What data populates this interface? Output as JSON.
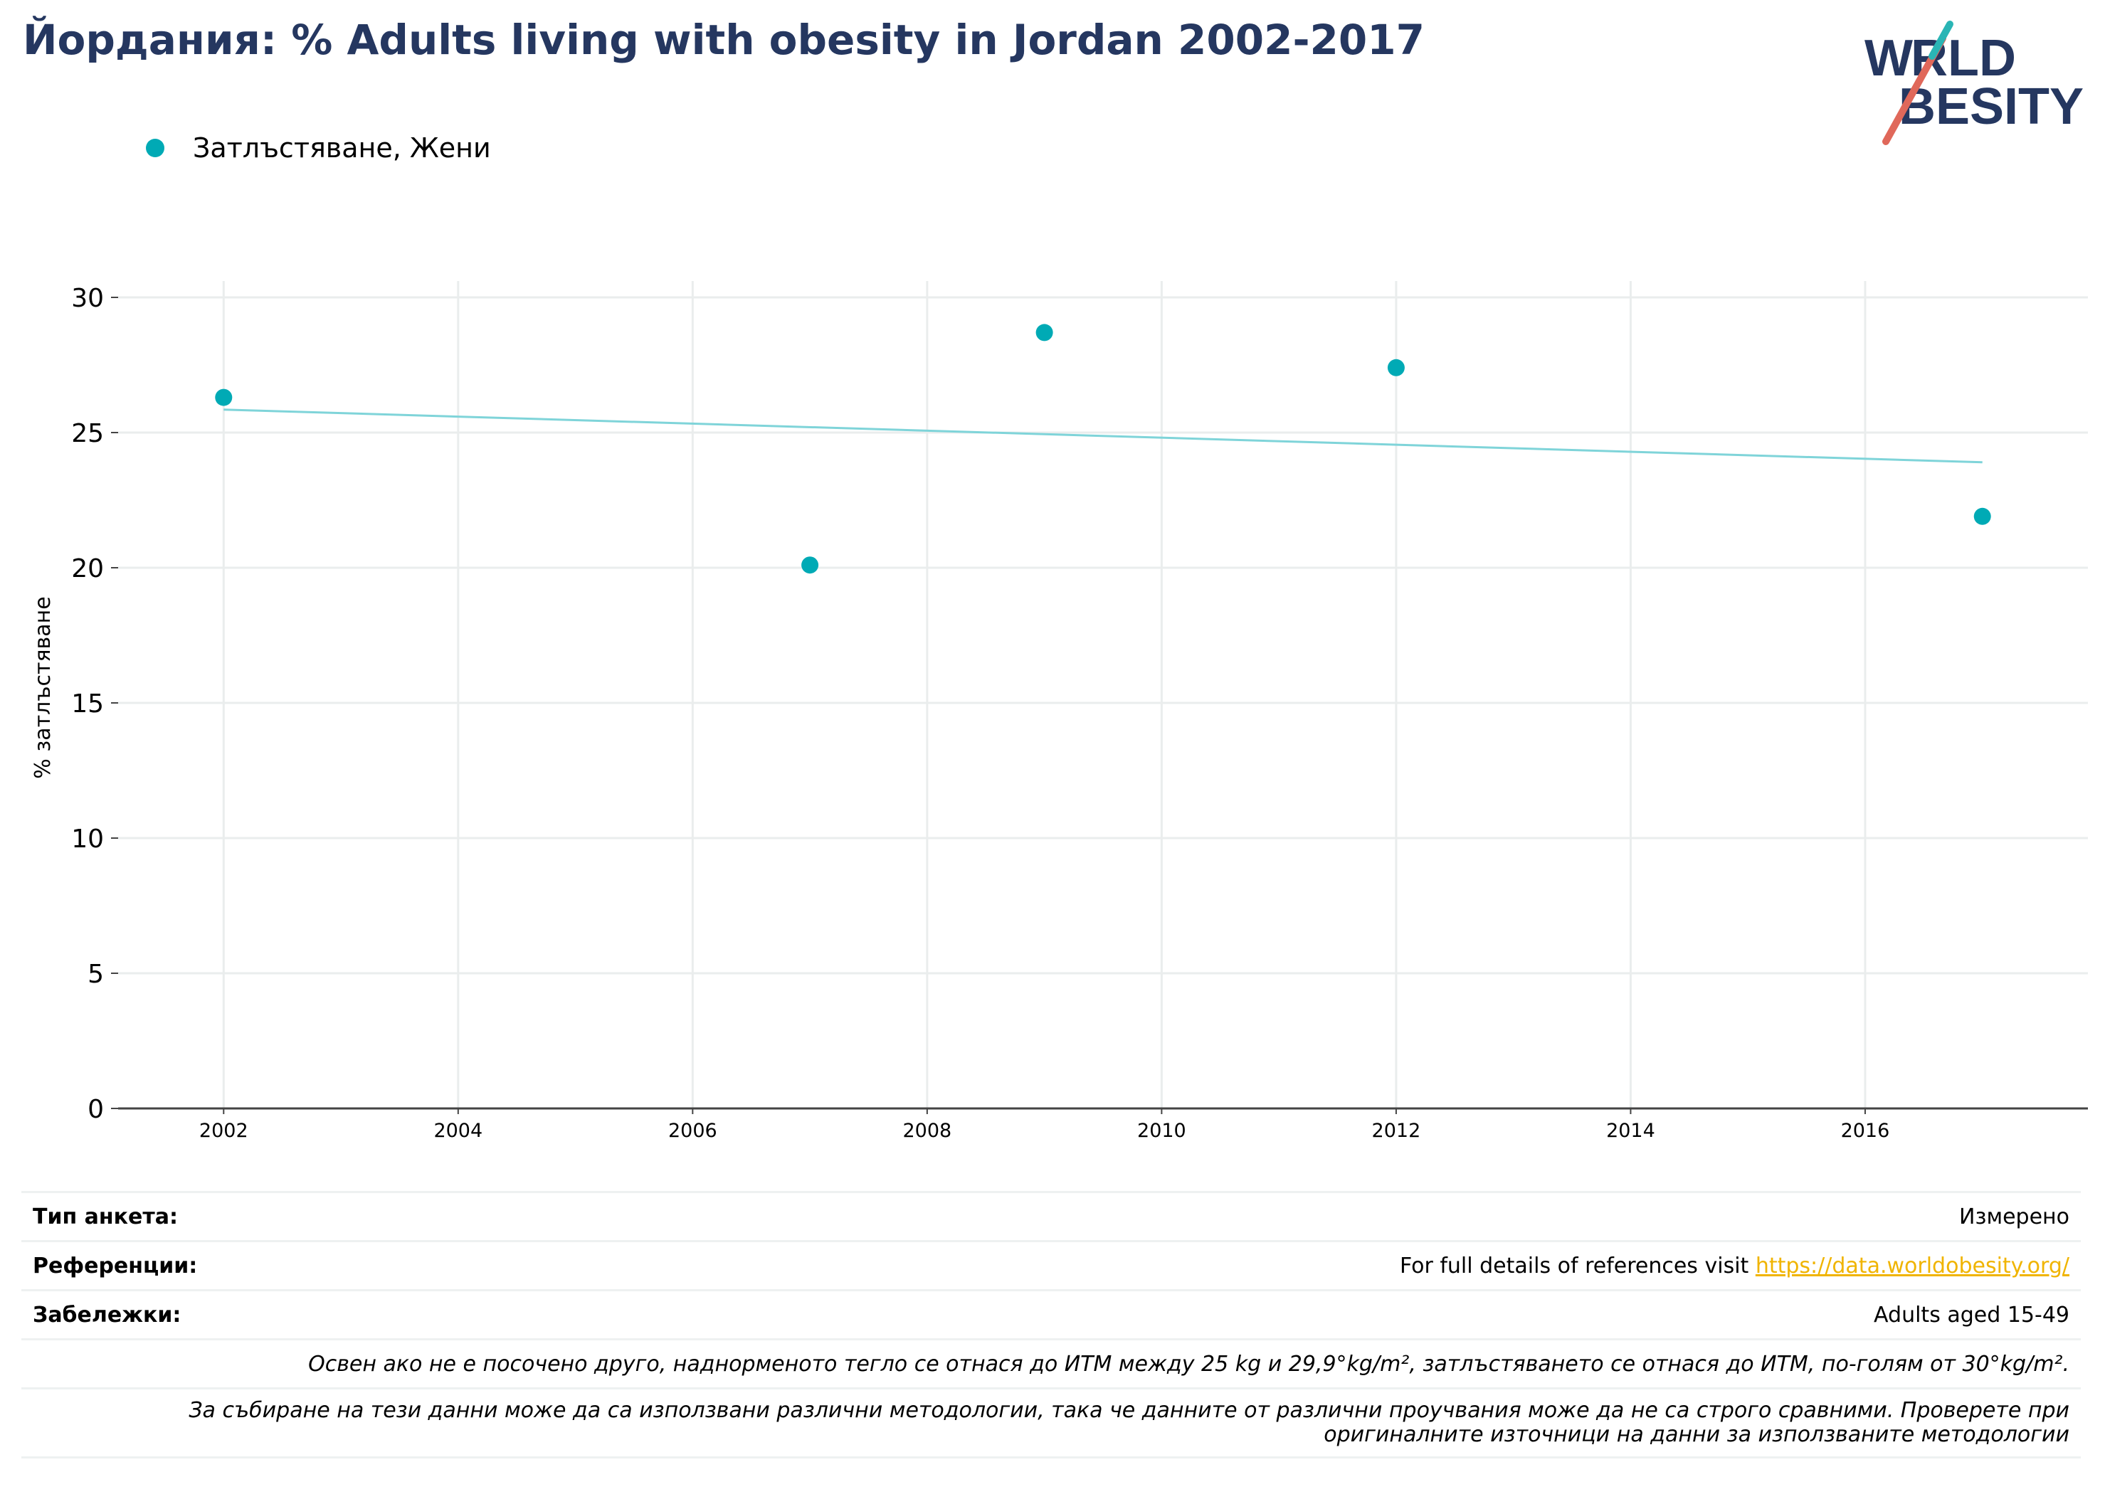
{
  "title": "Йордания: % Adults living with obesity in Jordan 2002-2017",
  "logo": {
    "line1": "WORLD",
    "line2": "OBESITY"
  },
  "colors": {
    "series": "#00aab5",
    "trend": "#7fd4d9",
    "title": "#253760",
    "grid": "#eaeded",
    "axis": "#444444",
    "link": "#f0b400"
  },
  "chart_data": {
    "type": "scatter",
    "title": "Йордания: % Adults living with obesity in Jordan 2002-2017",
    "ylabel": "% затлъстяване",
    "xlabel": "",
    "xlim": [
      2001.1,
      2017.9
    ],
    "ylim": [
      0,
      30
    ],
    "x_ticks": [
      2002,
      2004,
      2006,
      2008,
      2010,
      2012,
      2014,
      2016
    ],
    "y_ticks": [
      0,
      5,
      10,
      15,
      20,
      25,
      30
    ],
    "grid": true,
    "legend_position": "top-left",
    "series": [
      {
        "name": "Затлъстяване, Жени",
        "points": [
          {
            "x": 2002,
            "y": 26.3
          },
          {
            "x": 2007,
            "y": 20.1
          },
          {
            "x": 2009,
            "y": 28.7
          },
          {
            "x": 2012,
            "y": 27.4
          },
          {
            "x": 2017,
            "y": 21.9
          }
        ]
      }
    ],
    "trendline": {
      "x": [
        2002,
        2017
      ],
      "y": [
        25.85,
        23.9
      ]
    }
  },
  "info": {
    "survey_type_label": "Тип анкета:",
    "survey_type_value": "Измерено",
    "references_label": "Референции:",
    "references_text": "For full details of references visit ",
    "references_link": "https://data.worldobesity.org/",
    "notes_label": "Забележки:",
    "notes_value": "Adults aged 15-49",
    "bmi_note": "Освен ако не е посочено друго, наднорменото тегло се отнася до ИТМ между 25 kg и 29,9°kg/m², затлъстяването се отнася до ИТМ, по-голям от 30°kg/m².",
    "method_note": "За събиране на тези данни може да са използвани различни методологии, така че данните от различни проучвания може да не са строго сравними. Проверете при\nоригиналните източници на данни за използваните методологии"
  }
}
